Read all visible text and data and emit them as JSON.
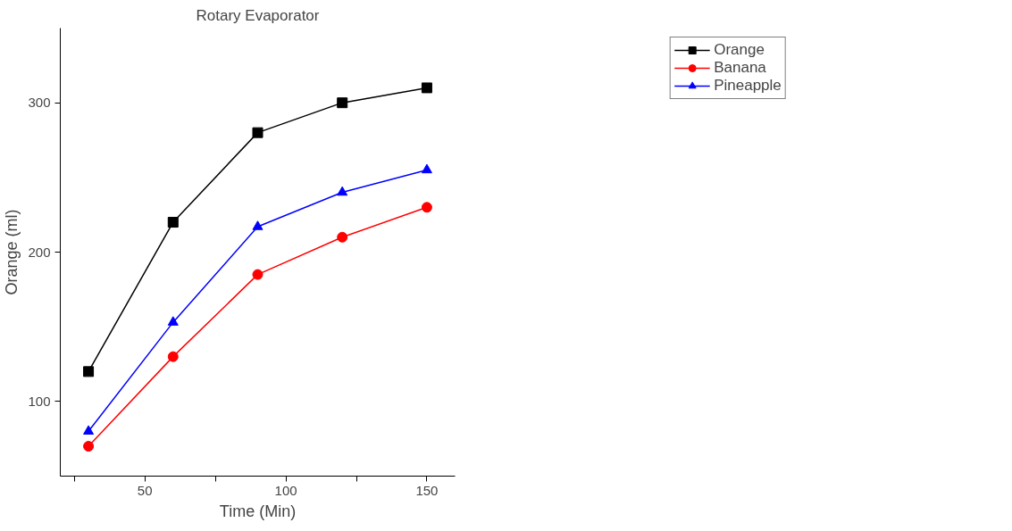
{
  "chart_data": {
    "type": "line",
    "title": "Rotary Evaporator",
    "xlabel": "Time (Min)",
    "ylabel": "Orange (ml)",
    "x": [
      30,
      60,
      90,
      120,
      150
    ],
    "series": [
      {
        "name": "Orange",
        "color": "#000000",
        "marker": "square",
        "values": [
          120,
          220,
          280,
          300,
          310
        ]
      },
      {
        "name": "Banana",
        "color": "#ff0000",
        "marker": "circle",
        "values": [
          70,
          130,
          185,
          210,
          230
        ]
      },
      {
        "name": "Pineapple",
        "color": "#0000ff",
        "marker": "triangle",
        "values": [
          80,
          153,
          217,
          240,
          255
        ]
      }
    ],
    "xlim": [
      20,
      160
    ],
    "ylim": [
      50,
      350
    ],
    "xticks": [
      {
        "value": 25,
        "label": null
      },
      50,
      {
        "value": 75,
        "label": null
      },
      100,
      {
        "value": 125,
        "label": null
      },
      150
    ],
    "yticks": [
      100,
      200,
      300
    ],
    "grid": false,
    "legend": "top right",
    "line_style": "solid"
  }
}
